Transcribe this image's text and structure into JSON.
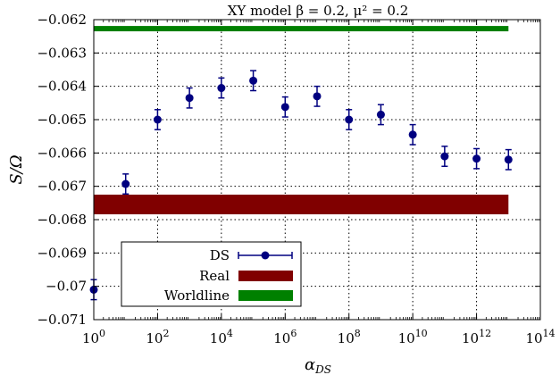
{
  "chart_data": {
    "type": "scatter",
    "title": "XY model β = 0.2, μ² = 0.2",
    "xlabel": "α",
    "xlabel_subscript": "DS",
    "ylabel": "S/Ω",
    "x_scale": "log10",
    "xlim": [
      1,
      100000000000000
    ],
    "ylim": [
      -0.071,
      -0.062
    ],
    "grid": true,
    "x_ticks": [
      {
        "exp": 0,
        "base": "10",
        "sup": "0"
      },
      {
        "exp": 2,
        "base": "10",
        "sup": "2"
      },
      {
        "exp": 4,
        "base": "10",
        "sup": "4"
      },
      {
        "exp": 6,
        "base": "10",
        "sup": "6"
      },
      {
        "exp": 8,
        "base": "10",
        "sup": "8"
      },
      {
        "exp": 10,
        "base": "10",
        "sup": "10"
      },
      {
        "exp": 12,
        "base": "10",
        "sup": "12"
      },
      {
        "exp": 14,
        "base": "10",
        "sup": "14"
      }
    ],
    "y_ticks": [
      {
        "value": -0.062,
        "label": "−0.062"
      },
      {
        "value": -0.063,
        "label": "−0.063"
      },
      {
        "value": -0.064,
        "label": "−0.064"
      },
      {
        "value": -0.065,
        "label": "−0.065"
      },
      {
        "value": -0.066,
        "label": "−0.066"
      },
      {
        "value": -0.067,
        "label": "−0.067"
      },
      {
        "value": -0.068,
        "label": "−0.068"
      },
      {
        "value": -0.069,
        "label": "−0.069"
      },
      {
        "value": -0.07,
        "label": "−0.07"
      },
      {
        "value": -0.071,
        "label": "−0.071"
      }
    ],
    "legend_position": "bottom-left",
    "series": [
      {
        "name": "DS",
        "kind": "errorbar",
        "color": "#000080",
        "points": [
          {
            "x": 1,
            "y": -0.0701,
            "err": 0.0003
          },
          {
            "x": 10,
            "y": -0.06693,
            "err": 0.0003
          },
          {
            "x": 100,
            "y": -0.065,
            "err": 0.0003
          },
          {
            "x": 1000,
            "y": -0.06435,
            "err": 0.0003
          },
          {
            "x": 10000,
            "y": -0.06405,
            "err": 0.0003
          },
          {
            "x": 100000,
            "y": -0.06383,
            "err": 0.0003
          },
          {
            "x": 1000000,
            "y": -0.06462,
            "err": 0.0003
          },
          {
            "x": 10000000,
            "y": -0.0643,
            "err": 0.0003
          },
          {
            "x": 100000000,
            "y": -0.065,
            "err": 0.0003
          },
          {
            "x": 1000000000,
            "y": -0.06485,
            "err": 0.0003
          },
          {
            "x": 10000000000,
            "y": -0.06545,
            "err": 0.0003
          },
          {
            "x": 100000000000,
            "y": -0.0661,
            "err": 0.0003
          },
          {
            "x": 1000000000000,
            "y": -0.06617,
            "err": 0.0003
          },
          {
            "x": 10000000000000,
            "y": -0.0662,
            "err": 0.0003
          }
        ]
      },
      {
        "name": "Real",
        "kind": "band",
        "color": "#800000",
        "x_range": [
          1,
          10000000000000
        ],
        "y_range": [
          -0.06784,
          -0.06725
        ]
      },
      {
        "name": "Worldline",
        "kind": "band",
        "color": "#008000",
        "x_range": [
          1,
          10000000000000
        ],
        "y_range": [
          -0.06235,
          -0.06219
        ]
      }
    ]
  }
}
